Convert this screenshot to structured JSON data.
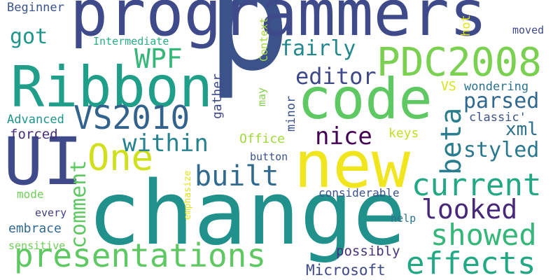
{
  "word_cloud": {
    "background": "#ffffff",
    "words": [
      {
        "id": "p",
        "text": "p",
        "color": "#3b528b"
      },
      {
        "id": "programmers",
        "text": "programmers",
        "color": "#3e4a89"
      },
      {
        "id": "change",
        "text": "change",
        "color": "#21918c"
      },
      {
        "id": "new",
        "text": "new",
        "color": "#f1e51d"
      },
      {
        "id": "code",
        "text": "code",
        "color": "#5ec962"
      },
      {
        "id": "ribbon",
        "text": "Ribbon",
        "color": "#1f9e89"
      },
      {
        "id": "ui",
        "text": "UI",
        "color": "#3e4a89"
      },
      {
        "id": "pdc2008",
        "text": "PDC2008",
        "color": "#7ad151"
      },
      {
        "id": "vs2010",
        "text": "VS2010",
        "color": "#33638d"
      },
      {
        "id": "one",
        "text": "One",
        "color": "#d0e11c"
      },
      {
        "id": "presentations",
        "text": "presentations",
        "color": "#5ec962"
      },
      {
        "id": "current",
        "text": "current",
        "color": "#22a884"
      },
      {
        "id": "effects",
        "text": "effects",
        "color": "#22a884"
      },
      {
        "id": "showed",
        "text": "showed",
        "color": "#35b779"
      },
      {
        "id": "looked",
        "text": "looked",
        "color": "#482878"
      },
      {
        "id": "beta",
        "text": "beta",
        "color": "#287d8e"
      },
      {
        "id": "built",
        "text": "built",
        "color": "#306a8e"
      },
      {
        "id": "within",
        "text": "within",
        "color": "#26828e"
      },
      {
        "id": "nice",
        "text": "nice",
        "color": "#440154"
      },
      {
        "id": "styled",
        "text": "styled",
        "color": "#2a788e"
      },
      {
        "id": "parsed",
        "text": "parsed",
        "color": "#31688e"
      },
      {
        "id": "xml",
        "text": "xml",
        "color": "#2c728e"
      },
      {
        "id": "editor",
        "text": "editor",
        "color": "#3e4989"
      },
      {
        "id": "wpf",
        "text": "WPF",
        "color": "#35b779"
      },
      {
        "id": "fairly",
        "text": "fairly",
        "color": "#23888e"
      },
      {
        "id": "comment",
        "text": "comment",
        "color": "#5ec962"
      },
      {
        "id": "got",
        "text": "got",
        "color": "#1f968b"
      },
      {
        "id": "beginner",
        "text": "Beginner",
        "color": "#3b528b"
      },
      {
        "id": "intermediate",
        "text": "Intermediate",
        "color": "#29af7f"
      },
      {
        "id": "advanced",
        "text": "Advanced",
        "color": "#1f968b"
      },
      {
        "id": "forced",
        "text": "forced",
        "color": "#472d7b"
      },
      {
        "id": "mode",
        "text": "mode",
        "color": "#6ece58"
      },
      {
        "id": "every",
        "text": "every",
        "color": "#424086"
      },
      {
        "id": "embrace",
        "text": "embrace",
        "color": "#31688e"
      },
      {
        "id": "sensitive",
        "text": "sensitive",
        "color": "#6ece58"
      },
      {
        "id": "office",
        "text": "Office",
        "color": "#a0da39"
      },
      {
        "id": "button",
        "text": "button",
        "color": "#3b528b"
      },
      {
        "id": "keys",
        "text": "keys",
        "color": "#c2df23"
      },
      {
        "id": "vs",
        "text": "VS",
        "color": "#d8e219"
      },
      {
        "id": "wondering",
        "text": "wondering",
        "color": "#2c728e"
      },
      {
        "id": "classic",
        "text": "classic'",
        "color": "#3b528b"
      },
      {
        "id": "moved",
        "text": "moved",
        "color": "#3e4989"
      },
      {
        "id": "hot",
        "text": "hot",
        "color": "#e5e419"
      },
      {
        "id": "context",
        "text": "Context",
        "color": "#a0da39"
      },
      {
        "id": "gather",
        "text": "gather",
        "color": "#3e4989"
      },
      {
        "id": "may",
        "text": "may",
        "color": "#84d44b"
      },
      {
        "id": "minor",
        "text": "minor",
        "color": "#3b528b"
      },
      {
        "id": "emphasize",
        "text": "emphasize",
        "color": "#dde318"
      },
      {
        "id": "considerable",
        "text": "considerable",
        "color": "#3b528b"
      },
      {
        "id": "help",
        "text": "help",
        "color": "#2c728e"
      },
      {
        "id": "possibly",
        "text": "possibly",
        "color": "#46327e"
      },
      {
        "id": "microsoft",
        "text": "Microsoft",
        "color": "#3e4989"
      }
    ]
  }
}
